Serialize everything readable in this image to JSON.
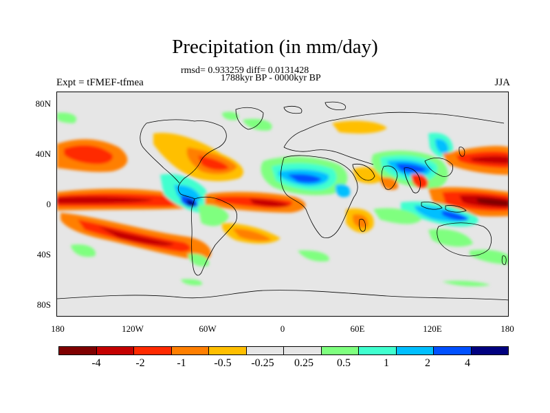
{
  "title": "Precipitation (in mm/day)",
  "stats_line": "rmsd= 0.933259 diff= 0.0131428",
  "period_line": "1788kyr BP - 0000kyr BP",
  "experiment_label": "Expt = tFMEF-tfmea",
  "season_label": "JJA",
  "lat_ticks": [
    "80N",
    "40N",
    "0",
    "40S",
    "80S"
  ],
  "lon_ticks": [
    "180",
    "120W",
    "60W",
    "0",
    "60E",
    "120E",
    "180"
  ],
  "colorbar": {
    "colors": [
      "#7f0000",
      "#c40000",
      "#ff2a00",
      "#ff7f00",
      "#ffbf00",
      "#e6e6e6",
      "#e6e6e6",
      "#7fff7f",
      "#40ffcf",
      "#00bfff",
      "#0050ff",
      "#00007f"
    ],
    "labels": [
      "-4",
      "-2",
      "-1",
      "-0.5",
      "-0.25",
      "0.25",
      "0.5",
      "1",
      "2",
      "4"
    ]
  },
  "map_background": "#e6e6e6"
}
